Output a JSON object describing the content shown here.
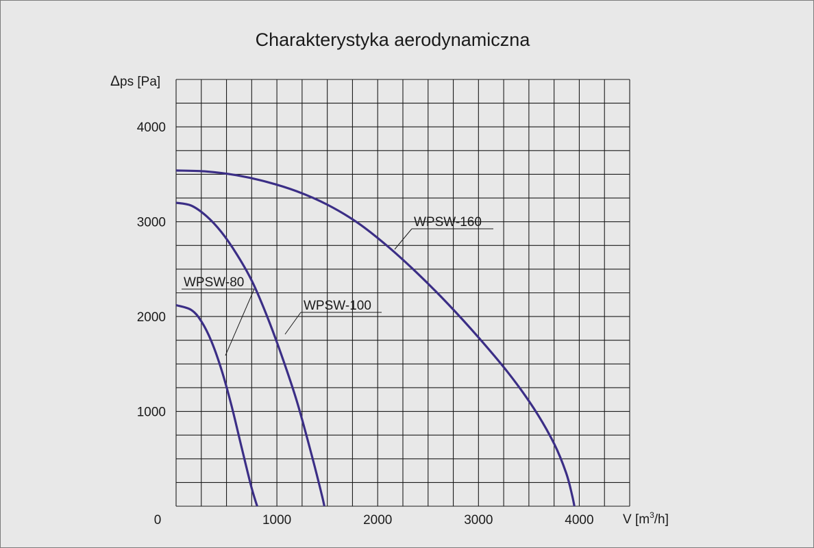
{
  "chart_data": {
    "type": "line",
    "title": "Charakterystyka aerodynamiczna",
    "ylabel_symbol": "Δ",
    "ylabel_text": "ps [Pa]",
    "xlabel_main": "V [m",
    "xlabel_sup": "3",
    "xlabel_tail": "/h]",
    "origin_label": "0",
    "xlim": [
      0,
      4500
    ],
    "ylim": [
      0,
      4500
    ],
    "x_ticks": [
      1000,
      2000,
      3000,
      4000
    ],
    "x_tick_labels": [
      "1000",
      "2000",
      "3000",
      "4000"
    ],
    "y_ticks": [
      1000,
      2000,
      3000,
      4000
    ],
    "y_tick_labels": [
      "1000",
      "2000",
      "3000",
      "4000"
    ],
    "grid": true,
    "grid_x_step": 250,
    "grid_y_step": 250,
    "line_color": "#3b2e86",
    "series": [
      {
        "name": "WPSW-80",
        "x": [
          0,
          150,
          250,
          350,
          450,
          550,
          650,
          750,
          820
        ],
        "y": [
          2120,
          2070,
          1950,
          1740,
          1440,
          1060,
          620,
          190,
          -50
        ]
      },
      {
        "name": "WPSW-100",
        "x": [
          0,
          150,
          300,
          450,
          600,
          750,
          900,
          1050,
          1200,
          1350,
          1450,
          1480
        ],
        "y": [
          3200,
          3170,
          3060,
          2890,
          2660,
          2380,
          2010,
          1580,
          1100,
          520,
          100,
          -50
        ]
      },
      {
        "name": "WPSW-160",
        "x": [
          0,
          300,
          600,
          900,
          1200,
          1500,
          1800,
          2100,
          2400,
          2700,
          3000,
          3300,
          3550,
          3750,
          3870,
          3930,
          3960
        ],
        "y": [
          3540,
          3530,
          3490,
          3420,
          3320,
          3180,
          2990,
          2740,
          2450,
          2130,
          1780,
          1400,
          1030,
          660,
          350,
          110,
          -50
        ]
      }
    ],
    "annotations": [
      {
        "series": "WPSW-80",
        "text": "WPSW-80"
      },
      {
        "series": "WPSW-100",
        "text": "WPSW-100"
      },
      {
        "series": "WPSW-160",
        "text": "WPSW-160"
      }
    ]
  }
}
